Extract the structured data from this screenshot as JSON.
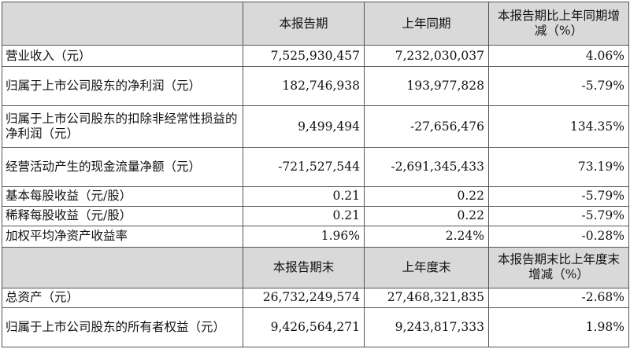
{
  "header1": {
    "blank": "",
    "col1": "本报告期",
    "col2": "上年同期",
    "col3": "本报告期比上年同期增减（%）"
  },
  "rows1": [
    {
      "label": "营业收入（元）",
      "current": "7,525,930,457",
      "prior": "7,232,030,037",
      "change": "4.06%"
    },
    {
      "label": "归属于上市公司股东的净利润（元）",
      "current": "182,746,938",
      "prior": "193,977,828",
      "change": "-5.79%"
    },
    {
      "label": "归属于上市公司股东的扣除非经常性损益的净利润（元）",
      "current": "9,499,494",
      "prior": "-27,656,476",
      "change": "134.35%"
    },
    {
      "label": "经营活动产生的现金流量净额（元）",
      "current": "-721,527,544",
      "prior": "-2,691,345,433",
      "change": "73.19%"
    },
    {
      "label": "基本每股收益（元/股）",
      "current": "0.21",
      "prior": "0.22",
      "change": "-5.79%"
    },
    {
      "label": "稀释每股收益（元/股）",
      "current": "0.21",
      "prior": "0.22",
      "change": "-5.79%"
    },
    {
      "label": "加权平均净资产收益率",
      "current": "1.96%",
      "prior": "2.24%",
      "change": "-0.28%"
    }
  ],
  "header2": {
    "blank": "",
    "col1": "本报告期末",
    "col2": "上年度末",
    "col3": "本报告期末比上年度末增减（%）"
  },
  "rows2": [
    {
      "label": "总资产（元）",
      "current": "26,732,249,574",
      "prior": "27,468,321,835",
      "change": "-2.68%"
    },
    {
      "label": "归属于上市公司股东的所有者权益（元）",
      "current": "9,426,564,271",
      "prior": "9,243,817,333",
      "change": "1.98%"
    }
  ]
}
